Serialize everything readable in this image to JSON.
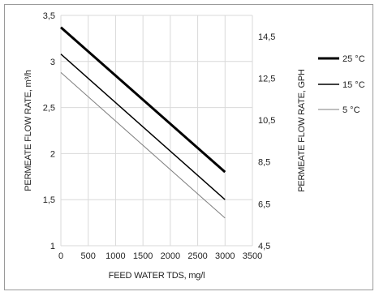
{
  "chart_data": {
    "type": "line",
    "xlabel": "FEED WATER TDS, mg/l",
    "ylabel": "PERMEATE FLOW RATE, m³/h",
    "y2label": "PERMEATE FLOW RATE, GPH",
    "xlim": [
      0,
      3500
    ],
    "ylim": [
      1,
      3.5
    ],
    "y2lim": [
      4.5,
      15.5
    ],
    "x_ticks": [
      0,
      500,
      1000,
      1500,
      2000,
      2500,
      3000,
      3500
    ],
    "y_ticks": [
      1,
      1.5,
      2,
      2.5,
      3,
      3.5
    ],
    "y_tick_labels": [
      "1",
      "1,5",
      "2",
      "2,5",
      "3",
      "3,5"
    ],
    "y2_ticks": [
      4.5,
      6.5,
      8.5,
      10.5,
      12.5,
      14.5
    ],
    "y2_tick_labels": [
      "4,5",
      "6,5",
      "8,5",
      "10,5",
      "12,5",
      "14,5"
    ],
    "grid": true,
    "legend_position": "right",
    "series": [
      {
        "name": "25 °C",
        "x": [
          0,
          3000
        ],
        "y": [
          3.37,
          1.8
        ],
        "color": "#000000",
        "width": 3
      },
      {
        "name": "15 °C",
        "x": [
          0,
          3000
        ],
        "y": [
          3.08,
          1.5
        ],
        "color": "#000000",
        "width": 1.5
      },
      {
        "name": "5 °C",
        "x": [
          0,
          3000
        ],
        "y": [
          2.88,
          1.3
        ],
        "color": "#7f7f7f",
        "width": 1
      }
    ]
  }
}
